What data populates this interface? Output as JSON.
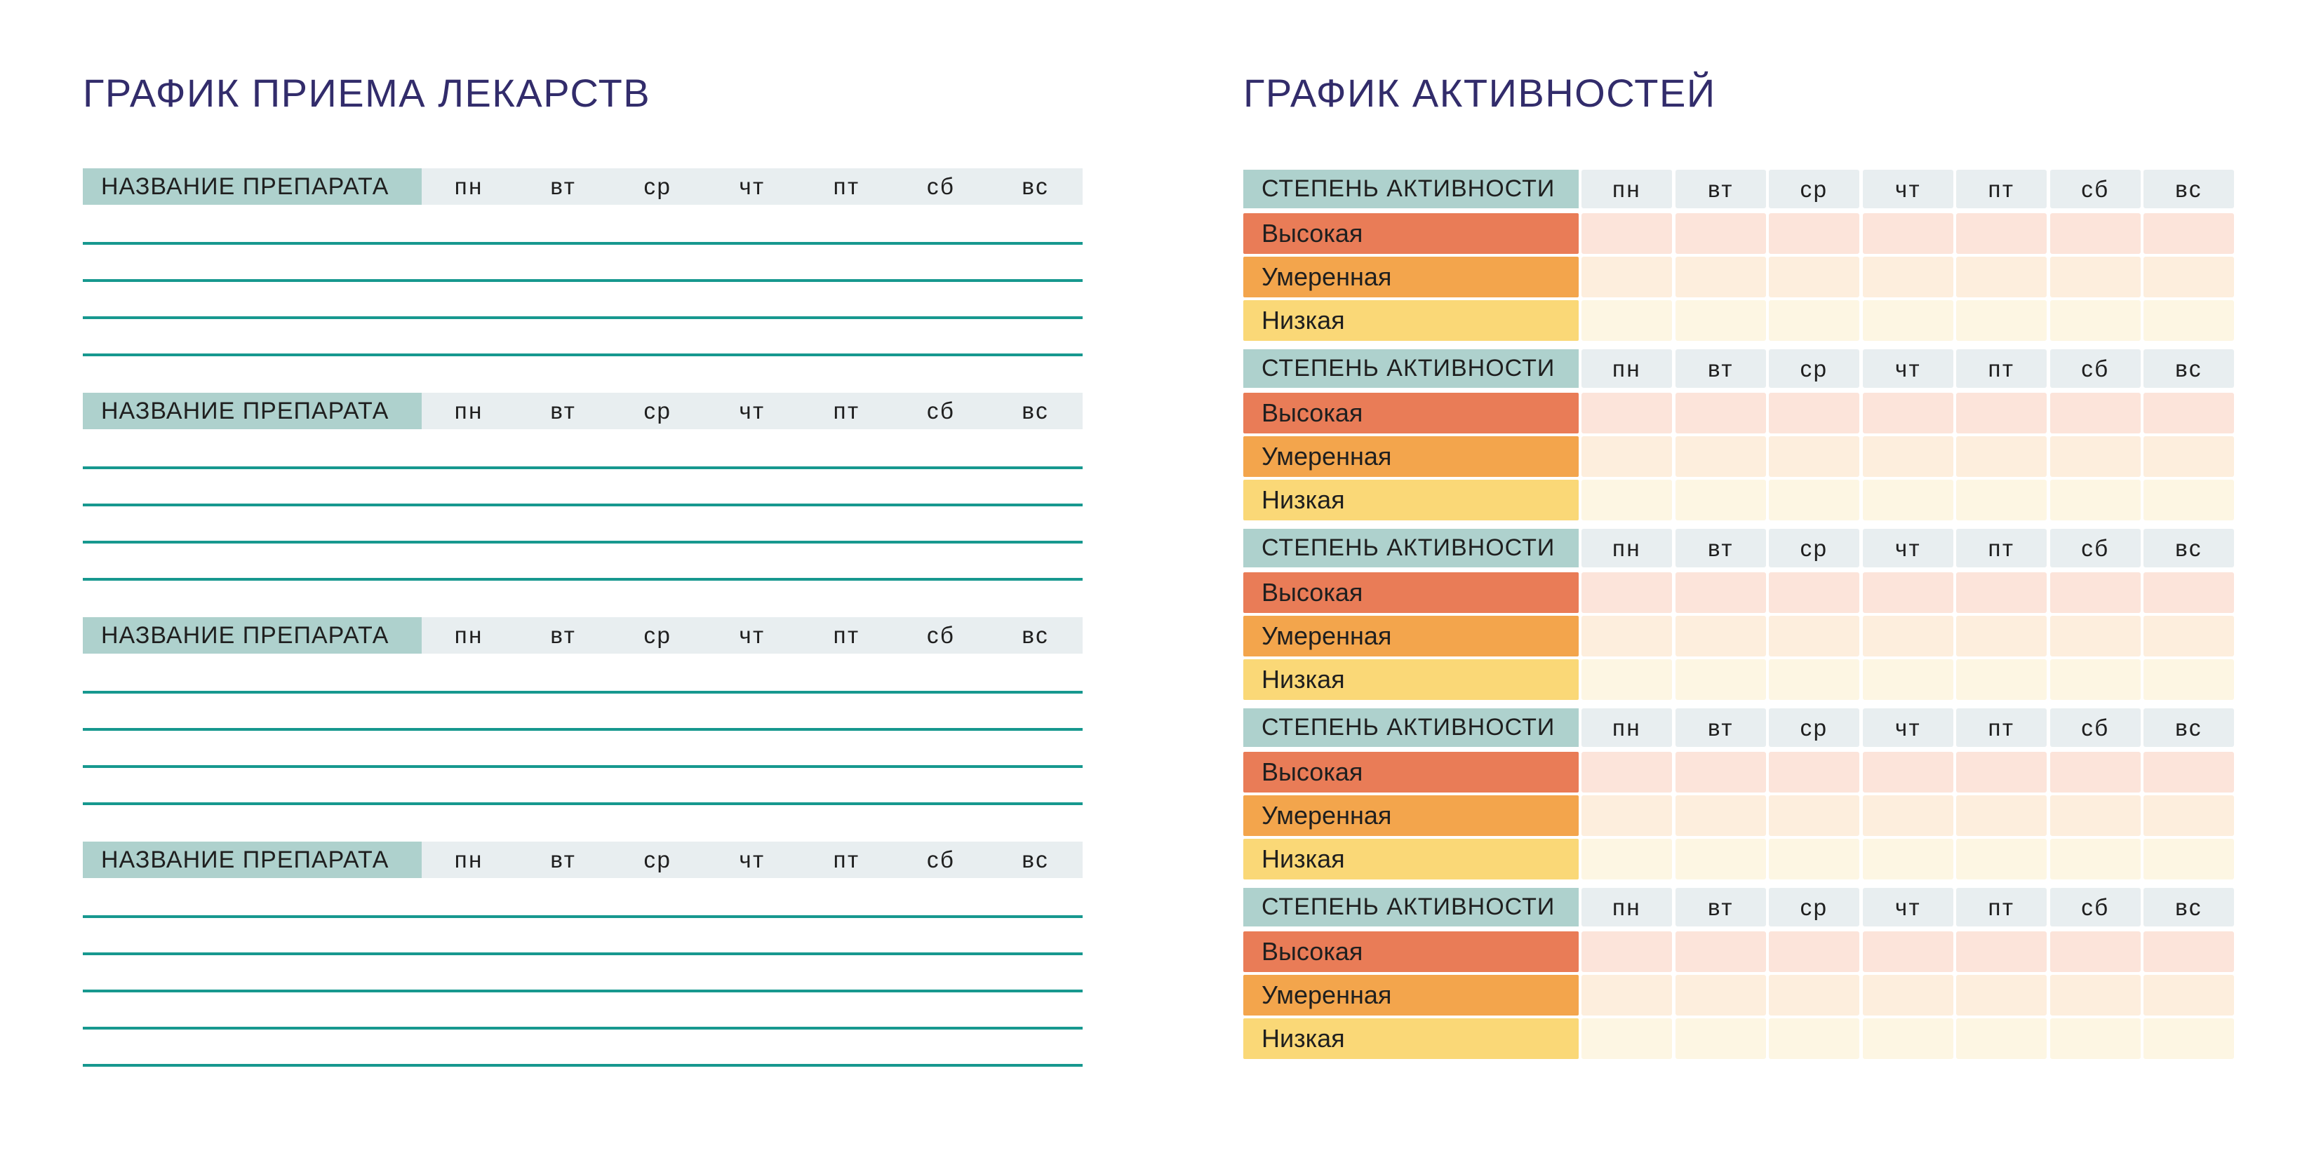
{
  "medication": {
    "title": "ГРАФИК ПРИЕМА ЛЕКАРСТВ",
    "header_label": "НАЗВАНИЕ ПРЕПАРАТА",
    "days": [
      "пн",
      "вт",
      "ср",
      "чт",
      "пт",
      "сб",
      "вс"
    ],
    "blocks": [
      {
        "rule_lines": 4
      },
      {
        "rule_lines": 4
      },
      {
        "rule_lines": 4
      },
      {
        "rule_lines": 5
      }
    ]
  },
  "activity": {
    "title": "ГРАФИК АКТИВНОСТЕЙ",
    "header_label": "СТЕПЕНЬ АКТИВНОСТИ",
    "days": [
      "пн",
      "вт",
      "ср",
      "чт",
      "пт",
      "сб",
      "вс"
    ],
    "levels": [
      {
        "key": "high",
        "label": "Высокая",
        "label_color": "#e97c57",
        "cell_color": "#fce4da"
      },
      {
        "key": "moderate",
        "label": "Умеренная",
        "label_color": "#f3a54c",
        "cell_color": "#fdeedd"
      },
      {
        "key": "low",
        "label": "Низкая",
        "label_color": "#fad877",
        "cell_color": "#fdf6e3"
      }
    ],
    "block_count": 5
  },
  "colors": {
    "background": "#ffffff",
    "title_text": "#322c6b",
    "table_header_cell": "#aed1cd",
    "day_header_cell": "#e8eef0",
    "rule_line": "#17988f",
    "cell_text": "#1f1f1f"
  }
}
